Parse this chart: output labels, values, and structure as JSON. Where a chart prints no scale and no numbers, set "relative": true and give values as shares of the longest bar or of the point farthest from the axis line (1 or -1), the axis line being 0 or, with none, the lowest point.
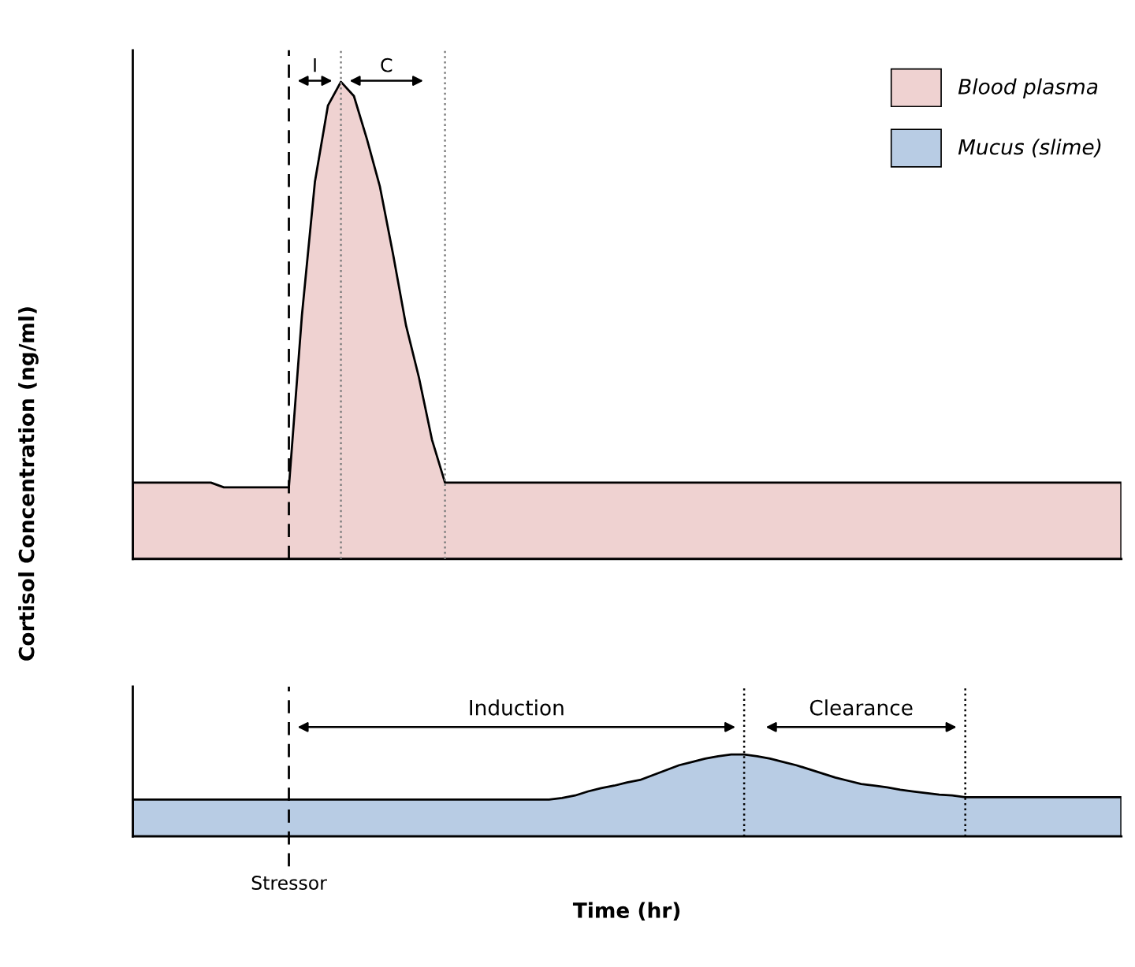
{
  "chart_data": [
    {
      "type": "area",
      "relative": true,
      "ylabel": "Cortisol Concentration (ng/ml)",
      "legend": "top right",
      "tick_labels": false,
      "annotations": [
        "I",
        "C"
      ],
      "categories": [
        null,
        null,
        null,
        null,
        null,
        null,
        null,
        null,
        null,
        null,
        null,
        null,
        null,
        null,
        null,
        null,
        null,
        null,
        null,
        null,
        null,
        null,
        null,
        null,
        null,
        null,
        null,
        null,
        null,
        null,
        null,
        null,
        null,
        null,
        null,
        null,
        null,
        null,
        null,
        null,
        null,
        null,
        null,
        null,
        null,
        null,
        null,
        null,
        null,
        null,
        null,
        null,
        null,
        null,
        null,
        null,
        null,
        null,
        null,
        null,
        null,
        null,
        null,
        null,
        null,
        null,
        null,
        null,
        null,
        null,
        null,
        null,
        null,
        null,
        null,
        null,
        null
      ],
      "series": [
        {
          "name": "Blood plasma",
          "color": "#efd2d1",
          "values": [
            0.16,
            0.16,
            0.16,
            0.16,
            0.16,
            0.16,
            0.16,
            0.15,
            0.15,
            0.15,
            0.15,
            0.15,
            0.15,
            0.51,
            0.79,
            0.95,
            1.0,
            0.97,
            0.88,
            0.78,
            0.64,
            0.49,
            0.38,
            0.25,
            0.16,
            0.16,
            0.16,
            0.16,
            0.16,
            0.16,
            0.16,
            0.16,
            0.16,
            0.16,
            0.16,
            0.16,
            0.16,
            0.16,
            0.16,
            0.16,
            0.16,
            0.16,
            0.16,
            0.16,
            0.16,
            0.16,
            0.16,
            0.16,
            0.16,
            0.16,
            0.16,
            0.16,
            0.16,
            0.16,
            0.16,
            0.16,
            0.16,
            0.16,
            0.16,
            0.16,
            0.16,
            0.16,
            0.16,
            0.16,
            0.16,
            0.16,
            0.16,
            0.16,
            0.16,
            0.16,
            0.16,
            0.16,
            0.16,
            0.16,
            0.16,
            0.16,
            0.16
          ]
        }
      ]
    },
    {
      "type": "area",
      "relative": true,
      "xlabel": "Time (hr)",
      "tick_labels": false,
      "annotations": [
        "Induction",
        "Clearance",
        "Stressor"
      ],
      "categories": [
        null,
        null,
        null,
        null,
        null,
        null,
        null,
        null,
        null,
        null,
        null,
        null,
        null,
        null,
        null,
        null,
        null,
        null,
        null,
        null,
        null,
        null,
        null,
        null,
        null,
        null,
        null,
        null,
        null,
        null,
        null,
        null,
        null,
        null,
        null,
        null,
        null,
        null,
        null,
        null,
        null,
        null,
        null,
        null,
        null,
        null,
        null,
        null,
        null,
        null,
        null,
        null,
        null,
        null,
        null,
        null,
        null,
        null,
        null,
        null,
        null,
        null,
        null,
        null,
        null,
        null,
        null,
        null,
        null,
        null,
        null,
        null,
        null,
        null,
        null,
        null,
        null
      ],
      "series": [
        {
          "name": "Mucus (slime)",
          "color": "#b8cce4",
          "values": [
            0.45,
            0.45,
            0.45,
            0.45,
            0.45,
            0.45,
            0.45,
            0.45,
            0.45,
            0.45,
            0.45,
            0.45,
            0.45,
            0.45,
            0.45,
            0.45,
            0.45,
            0.45,
            0.45,
            0.45,
            0.45,
            0.45,
            0.45,
            0.45,
            0.45,
            0.45,
            0.45,
            0.45,
            0.45,
            0.45,
            0.45,
            0.45,
            0.45,
            0.47,
            0.5,
            0.55,
            0.59,
            0.62,
            0.66,
            0.69,
            0.75,
            0.81,
            0.87,
            0.91,
            0.95,
            0.98,
            1.0,
            1.0,
            0.98,
            0.95,
            0.91,
            0.87,
            0.82,
            0.77,
            0.72,
            0.68,
            0.64,
            0.62,
            0.6,
            0.57,
            0.55,
            0.53,
            0.51,
            0.5,
            0.48,
            0.48,
            0.48,
            0.48,
            0.48,
            0.48,
            0.48,
            0.48,
            0.48,
            0.48,
            0.48,
            0.48,
            0.48
          ]
        }
      ]
    }
  ]
}
